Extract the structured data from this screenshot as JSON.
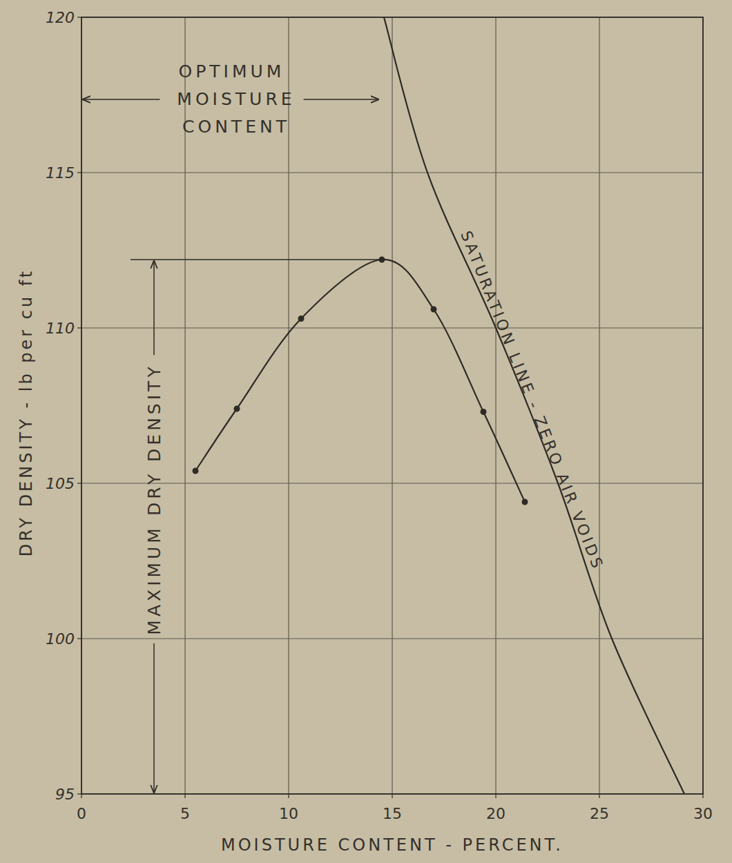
{
  "chart_data": {
    "type": "line",
    "x_label": "MOISTURE CONTENT - PERCENT.",
    "y_label": "DRY DENSITY - lb per cu ft",
    "xlim": [
      0,
      30
    ],
    "ylim": [
      95,
      120
    ],
    "xticks": [
      0,
      5,
      10,
      15,
      20,
      25,
      30
    ],
    "yticks": [
      95,
      100,
      105,
      110,
      115,
      120
    ],
    "grid": true,
    "series": [
      {
        "x": [
          5.5,
          7.5,
          10.6,
          14.5,
          17.0,
          19.4,
          21.4
        ],
        "values": [
          105.4,
          107.4,
          110.3,
          112.2,
          110.6,
          107.3,
          104.4
        ],
        "color": "#2e2a25",
        "marker": "circle",
        "line_style": "smooth"
      },
      {
        "name": "SATURATION LINE - ZERO AIR VOIDS",
        "x": [
          14.6,
          16.7,
          20.0,
          23.0,
          25.6,
          29.1
        ],
        "values": [
          120,
          115,
          110,
          105,
          100,
          95
        ],
        "color": "#2e2a25",
        "marker": "none",
        "line_style": "smooth"
      }
    ],
    "annotations": [
      {
        "text": "OPTIMUM MOISTURE CONTENT"
      },
      {
        "text": "MAXIMUM DRY DENSITY"
      }
    ]
  }
}
